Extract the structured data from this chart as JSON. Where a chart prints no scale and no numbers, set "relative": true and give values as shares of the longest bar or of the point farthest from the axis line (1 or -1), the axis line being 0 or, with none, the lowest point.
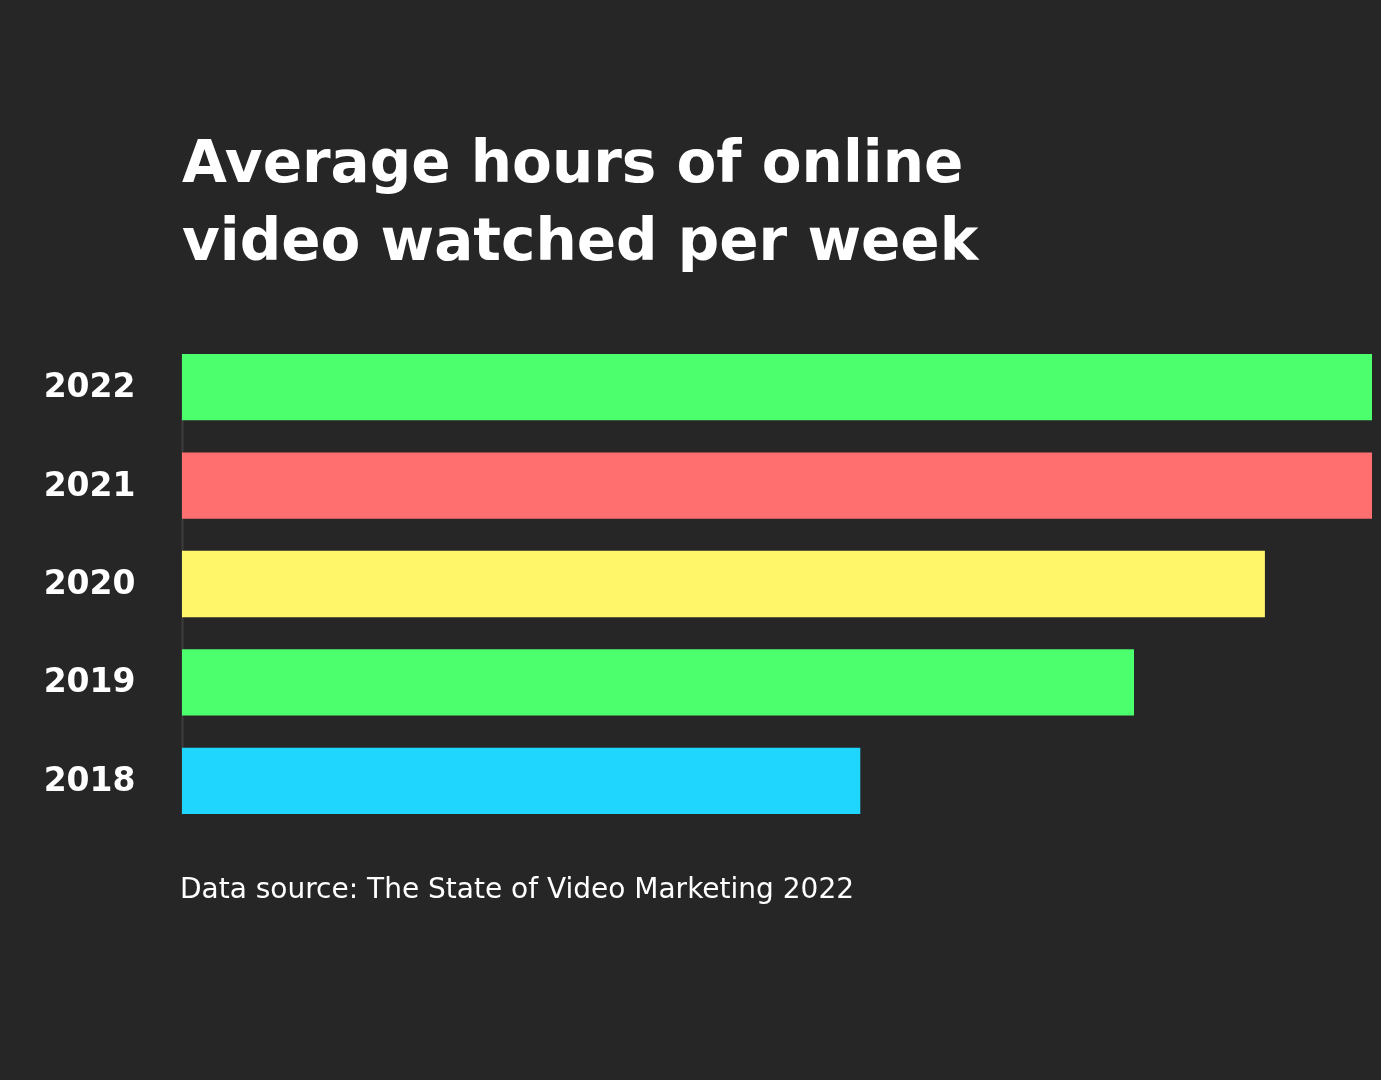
{
  "chart_data": {
    "type": "bar",
    "orientation": "horizontal",
    "relative": true,
    "title": "Average hours of online\nvideo watched per week",
    "categories": [
      "2022",
      "2021",
      "2020",
      "2019",
      "2018"
    ],
    "values": [
      1,
      1,
      0.91,
      0.8,
      0.57
    ],
    "colors": [
      "#4cff6c",
      "#ff6f6f",
      "#fff66a",
      "#4cff6c",
      "#1fd6ff"
    ],
    "legend": false,
    "annotations": [
      "Data source: The State of Video Marketing 2022"
    ]
  }
}
